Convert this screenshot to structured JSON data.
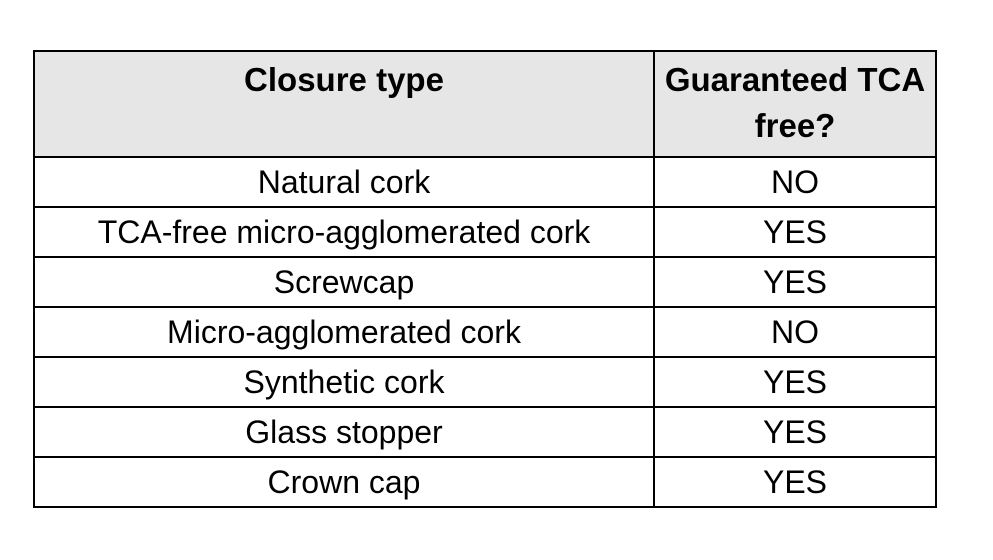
{
  "page": {
    "background_color": "#ffffff",
    "border_color": "#000000",
    "header_background_color": "#E7E6E6"
  },
  "table": {
    "headers": [
      {
        "label": "Closure type"
      },
      {
        "label": "Guaranteed TCA free?"
      }
    ],
    "rows": [
      {
        "closure": "Natural cork",
        "tca_free": "NO"
      },
      {
        "closure": "TCA-free micro-agglomerated cork",
        "tca_free": "YES"
      },
      {
        "closure": "Screwcap",
        "tca_free": "YES"
      },
      {
        "closure": "Micro-agglomerated cork",
        "tca_free": "NO"
      },
      {
        "closure": "Synthetic cork",
        "tca_free": "YES"
      },
      {
        "closure": "Glass stopper",
        "tca_free": "YES"
      },
      {
        "closure": "Crown cap",
        "tca_free": "YES"
      }
    ]
  }
}
